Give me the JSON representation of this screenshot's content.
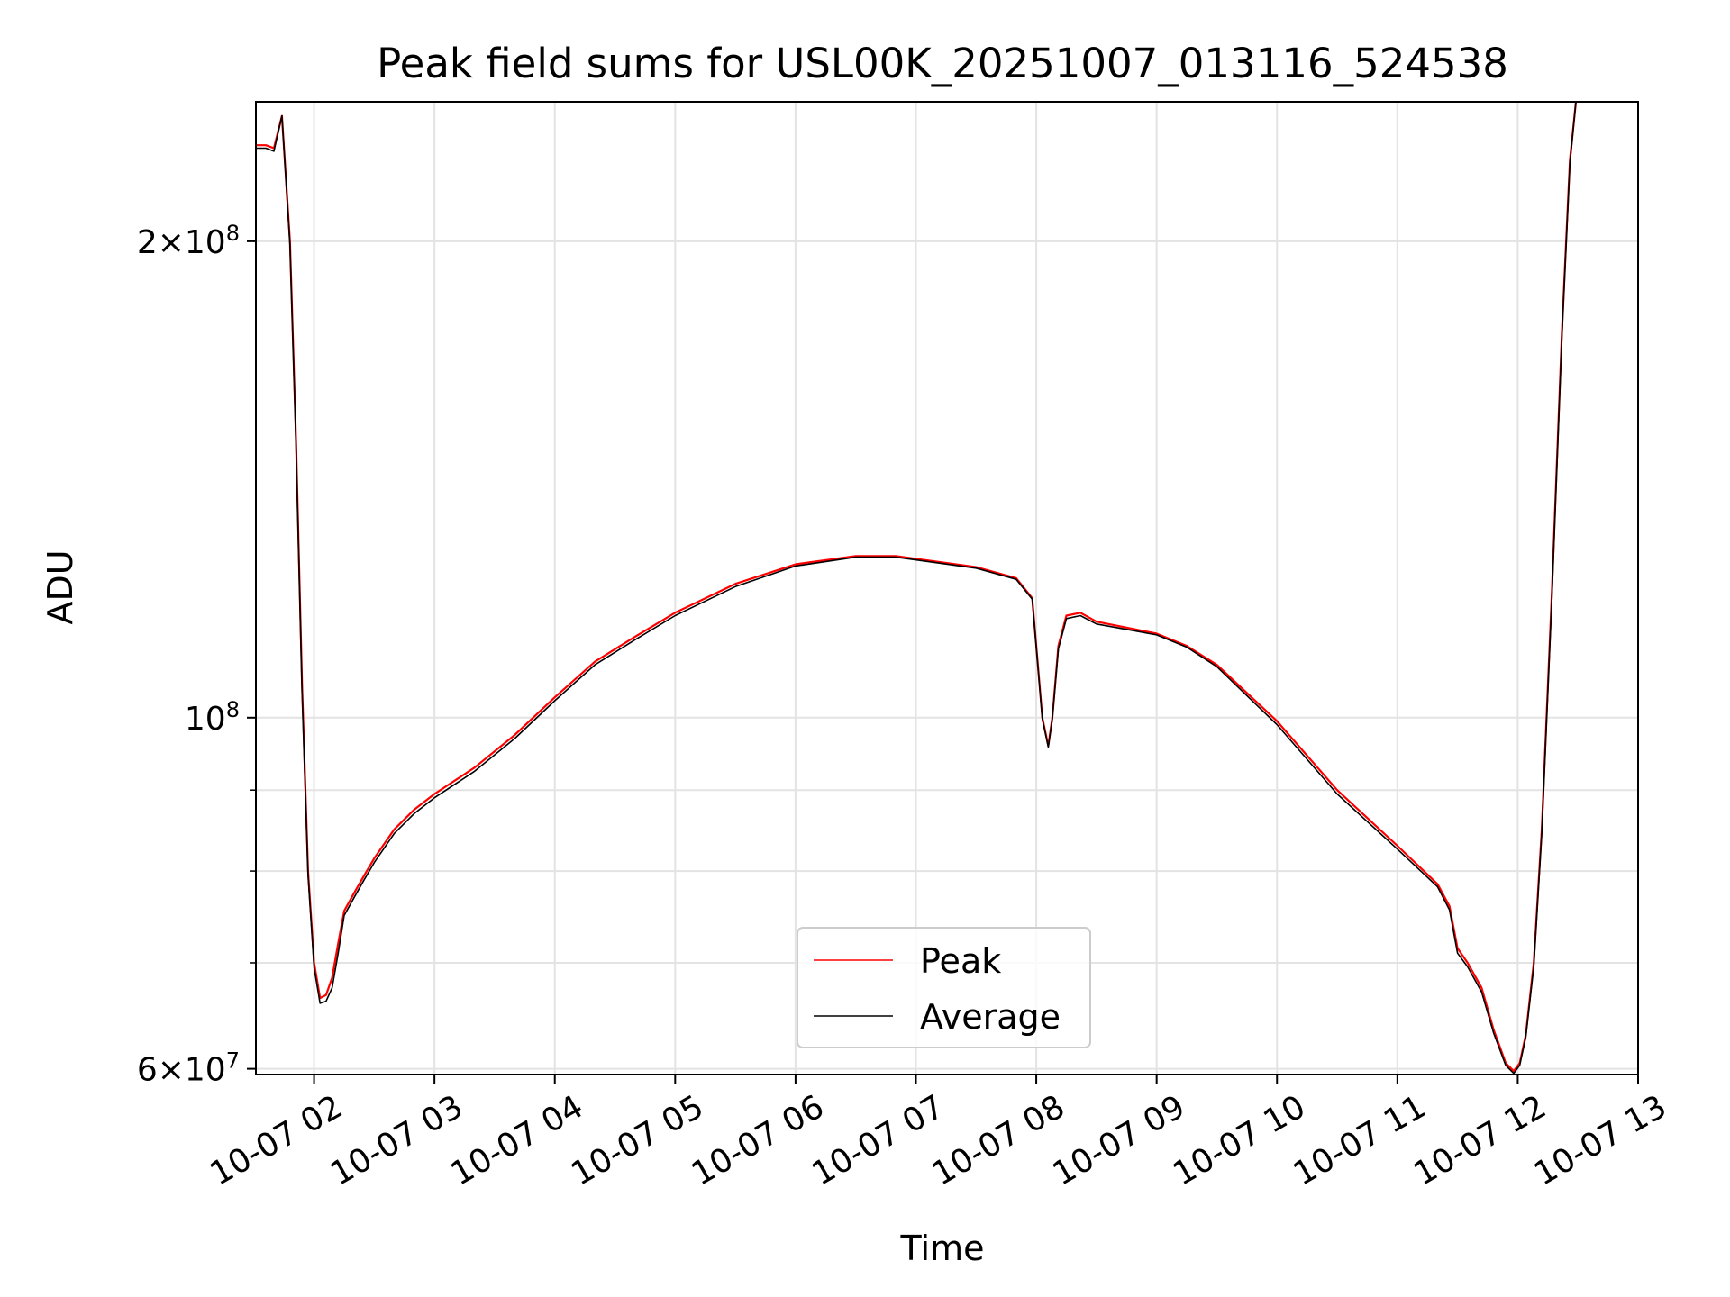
{
  "colors": {
    "peak": "#ff0000",
    "average": "#000000",
    "grid": "#e3e3e3",
    "frame": "#000000"
  },
  "chart_data": {
    "type": "line",
    "title": "Peak field sums for USL00K_20251007_013116_524538",
    "xlabel": "Time",
    "ylabel": "ADU",
    "yscale": "log",
    "grid": true,
    "legend_placement": "lower center",
    "x_range": [
      "2025-10-07 01:31",
      "2025-10-07 13:00"
    ],
    "ylim": [
      59500000,
      245000000
    ],
    "x_ticks": [
      {
        "value": "2025-10-07 02:00",
        "label": "10-07 02"
      },
      {
        "value": "2025-10-07 03:00",
        "label": "10-07 03"
      },
      {
        "value": "2025-10-07 04:00",
        "label": "10-07 04"
      },
      {
        "value": "2025-10-07 05:00",
        "label": "10-07 05"
      },
      {
        "value": "2025-10-07 06:00",
        "label": "10-07 06"
      },
      {
        "value": "2025-10-07 07:00",
        "label": "10-07 07"
      },
      {
        "value": "2025-10-07 08:00",
        "label": "10-07 08"
      },
      {
        "value": "2025-10-07 09:00",
        "label": "10-07 09"
      },
      {
        "value": "2025-10-07 10:00",
        "label": "10-07 10"
      },
      {
        "value": "2025-10-07 11:00",
        "label": "10-07 11"
      },
      {
        "value": "2025-10-07 12:00",
        "label": "10-07 12"
      },
      {
        "value": "2025-10-07 13:00",
        "label": "10-07 13"
      }
    ],
    "y_major_ticks": [
      {
        "value": 60000000,
        "mantissa": "6",
        "exponent": "7"
      },
      {
        "value": 100000000,
        "mantissa": "",
        "exponent": "8"
      },
      {
        "value": 200000000,
        "mantissa": "2",
        "exponent": "8"
      }
    ],
    "y_minor_ticks": [
      70000000,
      80000000,
      90000000
    ],
    "series": [
      {
        "name": "Peak",
        "color": "#ff0000",
        "x": [
          "2025-10-07 01:31",
          "2025-10-07 01:36",
          "2025-10-07 01:40",
          "2025-10-07 01:44",
          "2025-10-07 01:48",
          "2025-10-07 01:51",
          "2025-10-07 01:54",
          "2025-10-07 01:57",
          "2025-10-07 02:00",
          "2025-10-07 02:03",
          "2025-10-07 02:06",
          "2025-10-07 02:09",
          "2025-10-07 02:12",
          "2025-10-07 02:15",
          "2025-10-07 02:20",
          "2025-10-07 02:25",
          "2025-10-07 02:30",
          "2025-10-07 02:40",
          "2025-10-07 02:50",
          "2025-10-07 03:00",
          "2025-10-07 03:20",
          "2025-10-07 03:40",
          "2025-10-07 04:00",
          "2025-10-07 04:20",
          "2025-10-07 04:40",
          "2025-10-07 05:00",
          "2025-10-07 05:30",
          "2025-10-07 06:00",
          "2025-10-07 06:30",
          "2025-10-07 06:50",
          "2025-10-07 07:10",
          "2025-10-07 07:30",
          "2025-10-07 07:50",
          "2025-10-07 07:58",
          "2025-10-07 08:03",
          "2025-10-07 08:06",
          "2025-10-07 08:08",
          "2025-10-07 08:11",
          "2025-10-07 08:15",
          "2025-10-07 08:22",
          "2025-10-07 08:30",
          "2025-10-07 08:45",
          "2025-10-07 09:00",
          "2025-10-07 09:15",
          "2025-10-07 09:30",
          "2025-10-07 10:00",
          "2025-10-07 10:30",
          "2025-10-07 11:00",
          "2025-10-07 11:20",
          "2025-10-07 11:26",
          "2025-10-07 11:30",
          "2025-10-07 11:35",
          "2025-10-07 11:42",
          "2025-10-07 11:48",
          "2025-10-07 11:54",
          "2025-10-07 11:58",
          "2025-10-07 12:01",
          "2025-10-07 12:04",
          "2025-10-07 12:08",
          "2025-10-07 12:12",
          "2025-10-07 12:17",
          "2025-10-07 12:22",
          "2025-10-07 12:26",
          "2025-10-07 12:29"
        ],
        "y": [
          230000000,
          230000000,
          229000000,
          240000000,
          200000000,
          150000000,
          105000000,
          80000000,
          70000000,
          66500000,
          66800000,
          68500000,
          72000000,
          75500000,
          77500000,
          79500000,
          81500000,
          85000000,
          87500000,
          89500000,
          93000000,
          97500000,
          103000000,
          108500000,
          112500000,
          116500000,
          121500000,
          125000000,
          126500000,
          126500000,
          125500000,
          124500000,
          122500000,
          119000000,
          100000000,
          96000000,
          100000000,
          111000000,
          116000000,
          116500000,
          115000000,
          114000000,
          113000000,
          111000000,
          108000000,
          99500000,
          90000000,
          83000000,
          78500000,
          76000000,
          71500000,
          70000000,
          67500000,
          63500000,
          60500000,
          59800000,
          60500000,
          63000000,
          70000000,
          85000000,
          120000000,
          175000000,
          225000000,
          245000000
        ]
      },
      {
        "name": "Average",
        "color": "#000000",
        "x": [
          "2025-10-07 01:31",
          "2025-10-07 01:36",
          "2025-10-07 01:40",
          "2025-10-07 01:44",
          "2025-10-07 01:48",
          "2025-10-07 01:51",
          "2025-10-07 01:54",
          "2025-10-07 01:57",
          "2025-10-07 02:00",
          "2025-10-07 02:03",
          "2025-10-07 02:06",
          "2025-10-07 02:09",
          "2025-10-07 02:12",
          "2025-10-07 02:15",
          "2025-10-07 02:20",
          "2025-10-07 02:25",
          "2025-10-07 02:30",
          "2025-10-07 02:40",
          "2025-10-07 02:50",
          "2025-10-07 03:00",
          "2025-10-07 03:20",
          "2025-10-07 03:40",
          "2025-10-07 04:00",
          "2025-10-07 04:20",
          "2025-10-07 04:40",
          "2025-10-07 05:00",
          "2025-10-07 05:30",
          "2025-10-07 06:00",
          "2025-10-07 06:30",
          "2025-10-07 06:50",
          "2025-10-07 07:10",
          "2025-10-07 07:30",
          "2025-10-07 07:50",
          "2025-10-07 07:58",
          "2025-10-07 08:03",
          "2025-10-07 08:06",
          "2025-10-07 08:08",
          "2025-10-07 08:11",
          "2025-10-07 08:15",
          "2025-10-07 08:22",
          "2025-10-07 08:30",
          "2025-10-07 08:45",
          "2025-10-07 09:00",
          "2025-10-07 09:15",
          "2025-10-07 09:30",
          "2025-10-07 10:00",
          "2025-10-07 10:30",
          "2025-10-07 11:00",
          "2025-10-07 11:20",
          "2025-10-07 11:26",
          "2025-10-07 11:30",
          "2025-10-07 11:35",
          "2025-10-07 11:42",
          "2025-10-07 11:48",
          "2025-10-07 11:54",
          "2025-10-07 11:58",
          "2025-10-07 12:01",
          "2025-10-07 12:04",
          "2025-10-07 12:08",
          "2025-10-07 12:12",
          "2025-10-07 12:17",
          "2025-10-07 12:22",
          "2025-10-07 12:26",
          "2025-10-07 12:29"
        ],
        "y": [
          229000000,
          229000000,
          228000000,
          240000000,
          199000000,
          149000000,
          104000000,
          79500000,
          69500000,
          66000000,
          66200000,
          67500000,
          71000000,
          75000000,
          77000000,
          79000000,
          81000000,
          84500000,
          87000000,
          89000000,
          92500000,
          97000000,
          102500000,
          108000000,
          112000000,
          116000000,
          121000000,
          124700000,
          126300000,
          126300000,
          125300000,
          124300000,
          122300000,
          118800000,
          99800000,
          95800000,
          99800000,
          110500000,
          115500000,
          116000000,
          114600000,
          113700000,
          112800000,
          110800000,
          107700000,
          99000000,
          89500000,
          82600000,
          78200000,
          75600000,
          71000000,
          69600000,
          67100000,
          63200000,
          60300000,
          59600000,
          60300000,
          62800000,
          69600000,
          84500000,
          119000000,
          174000000,
          224000000,
          245000000
        ]
      }
    ]
  }
}
